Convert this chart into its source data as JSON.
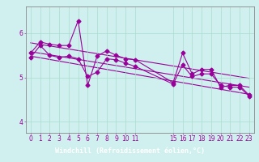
{
  "xlabel": "Windchill (Refroidissement éolien,°C)",
  "bg_color": "#cff0ee",
  "line_color": "#990099",
  "grid_color": "#aaddcc",
  "ylim": [
    3.75,
    6.6
  ],
  "xlim": [
    -0.5,
    23.5
  ],
  "yticks": [
    4,
    5,
    6
  ],
  "xticks": [
    0,
    1,
    2,
    3,
    4,
    5,
    6,
    7,
    8,
    9,
    10,
    11,
    15,
    16,
    17,
    18,
    19,
    20,
    21,
    22,
    23
  ],
  "series1_x": [
    0,
    1,
    2,
    3,
    4,
    5,
    6,
    7,
    8,
    9,
    10,
    11,
    15,
    16,
    17,
    18,
    19,
    20,
    21,
    22,
    23
  ],
  "series1_y": [
    5.55,
    5.8,
    5.75,
    5.72,
    5.72,
    6.28,
    4.82,
    5.48,
    5.6,
    5.5,
    5.42,
    5.4,
    4.88,
    5.55,
    5.08,
    5.18,
    5.18,
    4.78,
    4.82,
    4.82,
    4.6
  ],
  "series2_x": [
    0,
    1,
    2,
    3,
    4,
    5,
    6,
    7,
    8,
    9,
    10,
    11,
    15,
    16,
    17,
    18,
    19,
    20,
    21,
    22,
    23
  ],
  "series2_y": [
    5.45,
    5.72,
    5.5,
    5.45,
    5.48,
    5.42,
    5.02,
    5.12,
    5.42,
    5.4,
    5.32,
    5.25,
    4.85,
    5.28,
    5.02,
    5.08,
    5.08,
    4.82,
    4.78,
    4.78,
    4.58
  ],
  "trend1_x": [
    0,
    23
  ],
  "trend1_y": [
    5.78,
    4.98
  ],
  "trend2_x": [
    0,
    23
  ],
  "trend2_y": [
    5.58,
    4.78
  ],
  "trend3_x": [
    0,
    23
  ],
  "trend3_y": [
    5.48,
    4.62
  ],
  "marker": "D",
  "markersize": 2.5,
  "linewidth": 0.8,
  "tick_fontsize": 5.5,
  "label_fontsize": 6.0,
  "xlabel_bg": "#993399"
}
